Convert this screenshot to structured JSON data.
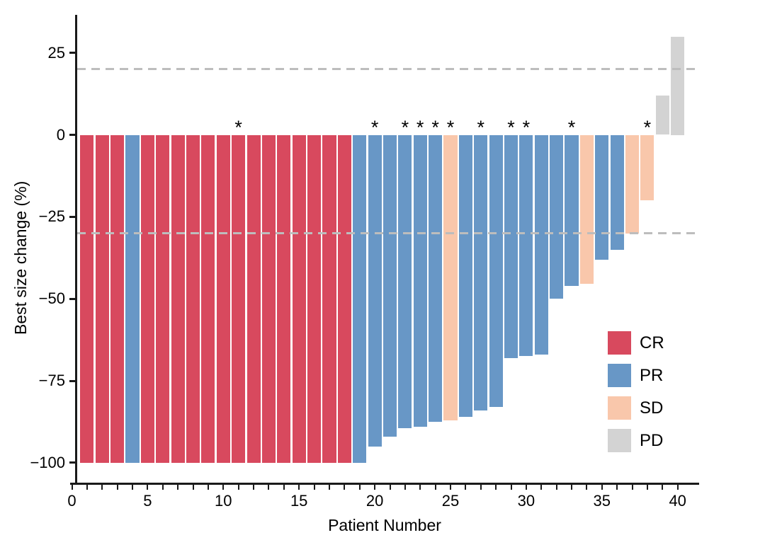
{
  "chart_data": {
    "type": "bar",
    "variant": "waterfall",
    "title": "",
    "xlabel": "Patient Number",
    "ylabel": "Best size change (%)",
    "xlim": [
      0,
      41
    ],
    "ylim": [
      -107,
      36
    ],
    "x_major_ticks": [
      0,
      5,
      10,
      15,
      20,
      25,
      30,
      35,
      40
    ],
    "x_minor_tick_every": 1,
    "y_ticks": [
      25,
      0,
      -25,
      -50,
      -75,
      -100
    ],
    "grid": "off",
    "annotation_glyph": "*",
    "reference_lines": [
      {
        "y": 20,
        "style": "dashed",
        "color": "#BDBDBD"
      },
      {
        "y": -30,
        "style": "dashed",
        "color": "#BDBDBD"
      }
    ],
    "colors": {
      "CR": "#D8495E",
      "PR": "#6897C6",
      "SD": "#F9C7AB",
      "PD": "#D3D3D3"
    },
    "legend": {
      "position": "inside-right",
      "entries": [
        {
          "label": "CR",
          "color": "#D8495E"
        },
        {
          "label": "PR",
          "color": "#6897C6"
        },
        {
          "label": "SD",
          "color": "#F9C7AB"
        },
        {
          "label": "PD",
          "color": "#D3D3D3"
        }
      ]
    },
    "patients": [
      {
        "patient": 1,
        "value": -100,
        "response": "CR",
        "star": false
      },
      {
        "patient": 2,
        "value": -100,
        "response": "CR",
        "star": false
      },
      {
        "patient": 3,
        "value": -100,
        "response": "CR",
        "star": false
      },
      {
        "patient": 4,
        "value": -100,
        "response": "PR",
        "star": false
      },
      {
        "patient": 5,
        "value": -100,
        "response": "CR",
        "star": false
      },
      {
        "patient": 6,
        "value": -100,
        "response": "CR",
        "star": false
      },
      {
        "patient": 7,
        "value": -100,
        "response": "CR",
        "star": false
      },
      {
        "patient": 8,
        "value": -100,
        "response": "CR",
        "star": false
      },
      {
        "patient": 9,
        "value": -100,
        "response": "CR",
        "star": false
      },
      {
        "patient": 10,
        "value": -100,
        "response": "CR",
        "star": false
      },
      {
        "patient": 11,
        "value": -100,
        "response": "CR",
        "star": true
      },
      {
        "patient": 12,
        "value": -100,
        "response": "CR",
        "star": false
      },
      {
        "patient": 13,
        "value": -100,
        "response": "CR",
        "star": false
      },
      {
        "patient": 14,
        "value": -100,
        "response": "CR",
        "star": false
      },
      {
        "patient": 15,
        "value": -100,
        "response": "CR",
        "star": false
      },
      {
        "patient": 16,
        "value": -100,
        "response": "CR",
        "star": false
      },
      {
        "pat": 0,
        "patient": 17,
        "value": -100,
        "response": "CR",
        "star": false
      },
      {
        "patient": 18,
        "value": -100,
        "response": "CR",
        "star": false
      },
      {
        "patient": 19,
        "value": -100,
        "response": "PR",
        "star": false
      },
      {
        "patient": 20,
        "value": -95,
        "response": "PR",
        "star": true
      },
      {
        "patient": 21,
        "value": -92,
        "response": "PR",
        "star": false
      },
      {
        "patient": 22,
        "value": -89.5,
        "response": "PR",
        "star": true
      },
      {
        "patient": 23,
        "value": -89,
        "response": "PR",
        "star": true
      },
      {
        "patient": 24,
        "value": -87.5,
        "response": "PR",
        "star": true
      },
      {
        "patient": 25,
        "value": -87,
        "response": "SD",
        "star": true
      },
      {
        "patient": 26,
        "value": -86,
        "response": "PR",
        "star": false
      },
      {
        "patient": 27,
        "value": -84,
        "response": "PR",
        "star": true
      },
      {
        "patient": 28,
        "value": -83,
        "response": "PR",
        "star": false
      },
      {
        "patient": 29,
        "value": -68,
        "response": "PR",
        "star": true
      },
      {
        "patient": 30,
        "value": -67.5,
        "response": "PR",
        "star": true
      },
      {
        "patient": 31,
        "value": -67,
        "response": "PR",
        "star": false
      },
      {
        "patient": 32,
        "value": -50,
        "response": "PR",
        "star": false
      },
      {
        "patient": 33,
        "value": -46,
        "response": "PR",
        "star": true
      },
      {
        "patient": 34,
        "value": -45.5,
        "response": "SD",
        "star": false
      },
      {
        "patient": 35,
        "value": -38,
        "response": "PR",
        "star": false
      },
      {
        "patient": 36,
        "value": -35,
        "response": "PR",
        "star": false
      },
      {
        "patient": 37,
        "value": -30,
        "response": "SD",
        "star": false
      },
      {
        "patient": 38,
        "value": -20,
        "response": "SD",
        "star": true
      },
      {
        "patient": 39,
        "value": 12,
        "response": "PD",
        "star": false
      },
      {
        "patient": 40,
        "value": 30,
        "response": "PD",
        "star": false
      }
    ]
  }
}
